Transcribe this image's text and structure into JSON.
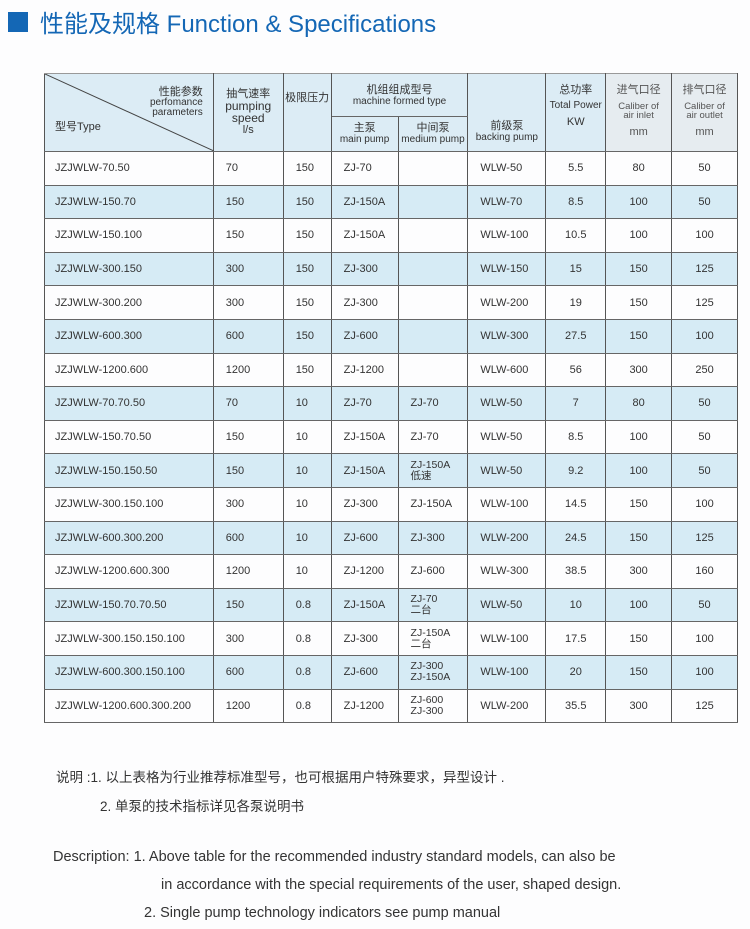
{
  "title": "性能及规格 Function & Specifications",
  "header": {
    "perf_cn": "性能参数",
    "perf_en1": "perfomance",
    "perf_en2": "parameters",
    "type": "型号Type",
    "speed_cn": "抽气速率",
    "speed_en1": "pumping",
    "speed_en2": "speed",
    "speed_unit": "l/s",
    "pressure": "极限压力",
    "machine_cn": "机组组成型号",
    "machine_en": "machine formed type",
    "main_cn": "主泵",
    "main_en": "main pump",
    "medium_cn": "中间泵",
    "medium_en": "medium pump",
    "backing_cn": "前级泵",
    "backing_en": "backing pump",
    "power_cn": "总功率",
    "power_en": "Total Power",
    "power_unit": "KW",
    "inlet_cn": "进气口径",
    "inlet_en1": "Caliber of",
    "inlet_en2": "air inlet",
    "inlet_unit": "mm",
    "outlet_cn": "排气口径",
    "outlet_en1": "Caliber of",
    "outlet_en2": "air outlet",
    "outlet_unit": "mm"
  },
  "rows": [
    [
      "JZJWLW-70.50",
      "70",
      "150",
      "ZJ-70",
      "",
      "WLW-50",
      "5.5",
      "80",
      "50"
    ],
    [
      "JZJWLW-150.70",
      "150",
      "150",
      "ZJ-150A",
      "",
      "WLW-70",
      "8.5",
      "100",
      "50"
    ],
    [
      "JZJWLW-150.100",
      "150",
      "150",
      "ZJ-150A",
      "",
      "WLW-100",
      "10.5",
      "100",
      "100"
    ],
    [
      "JZJWLW-300.150",
      "300",
      "150",
      "ZJ-300",
      "",
      "WLW-150",
      "15",
      "150",
      "125"
    ],
    [
      "JZJWLW-300.200",
      "300",
      "150",
      "ZJ-300",
      "",
      "WLW-200",
      "19",
      "150",
      "125"
    ],
    [
      "JZJWLW-600.300",
      "600",
      "150",
      "ZJ-600",
      "",
      "WLW-300",
      "27.5",
      "150",
      "100"
    ],
    [
      "JZJWLW-1200.600",
      "1200",
      "150",
      "ZJ-1200",
      "",
      "WLW-600",
      "56",
      "300",
      "250"
    ],
    [
      "JZJWLW-70.70.50",
      "70",
      "10",
      "ZJ-70",
      "ZJ-70",
      "WLW-50",
      "7",
      "80",
      "50"
    ],
    [
      "JZJWLW-150.70.50",
      "150",
      "10",
      "ZJ-150A",
      "ZJ-70",
      "WLW-50",
      "8.5",
      "100",
      "50"
    ],
    [
      "JZJWLW-150.150.50",
      "150",
      "10",
      "ZJ-150A",
      "ZJ-150A\n低速",
      "WLW-50",
      "9.2",
      "100",
      "50"
    ],
    [
      "JZJWLW-300.150.100",
      "300",
      "10",
      "ZJ-300",
      "ZJ-150A",
      "WLW-100",
      "14.5",
      "150",
      "100"
    ],
    [
      "JZJWLW-600.300.200",
      "600",
      "10",
      "ZJ-600",
      "ZJ-300",
      "WLW-200",
      "24.5",
      "150",
      "125"
    ],
    [
      "JZJWLW-1200.600.300",
      "1200",
      "10",
      "ZJ-1200",
      "ZJ-600",
      "WLW-300",
      "38.5",
      "300",
      "160"
    ],
    [
      "JZJWLW-150.70.70.50",
      "150",
      "0.8",
      "ZJ-150A",
      "ZJ-70\n二台",
      "WLW-50",
      "10",
      "100",
      "50"
    ],
    [
      "JZJWLW-300.150.150.100",
      "300",
      "0.8",
      "ZJ-300",
      "ZJ-150A\n二台",
      "WLW-100",
      "17.5",
      "150",
      "100"
    ],
    [
      "JZJWLW-600.300.150.100",
      "600",
      "0.8",
      "ZJ-600",
      "ZJ-300\nZJ-150A",
      "WLW-100",
      "20",
      "150",
      "100"
    ],
    [
      "JZJWLW-1200.600.300.200",
      "1200",
      "0.8",
      "ZJ-1200",
      "ZJ-600\nZJ-300",
      "WLW-200",
      "35.5",
      "300",
      "125"
    ]
  ],
  "notes": {
    "line1": "说明 :1. 以上表格为行业推荐标准型号，也可根据用户特殊要求，异型设计 .",
    "line2": "2. 单泵的技术指标详见各泵说明书"
  },
  "description": {
    "line1": "Description: 1. Above table for the recommended industry standard models, can also be",
    "line2": "in accordance with the special requirements of the user, shaped design.",
    "line3": "2. Single pump technology indicators see pump manual"
  }
}
